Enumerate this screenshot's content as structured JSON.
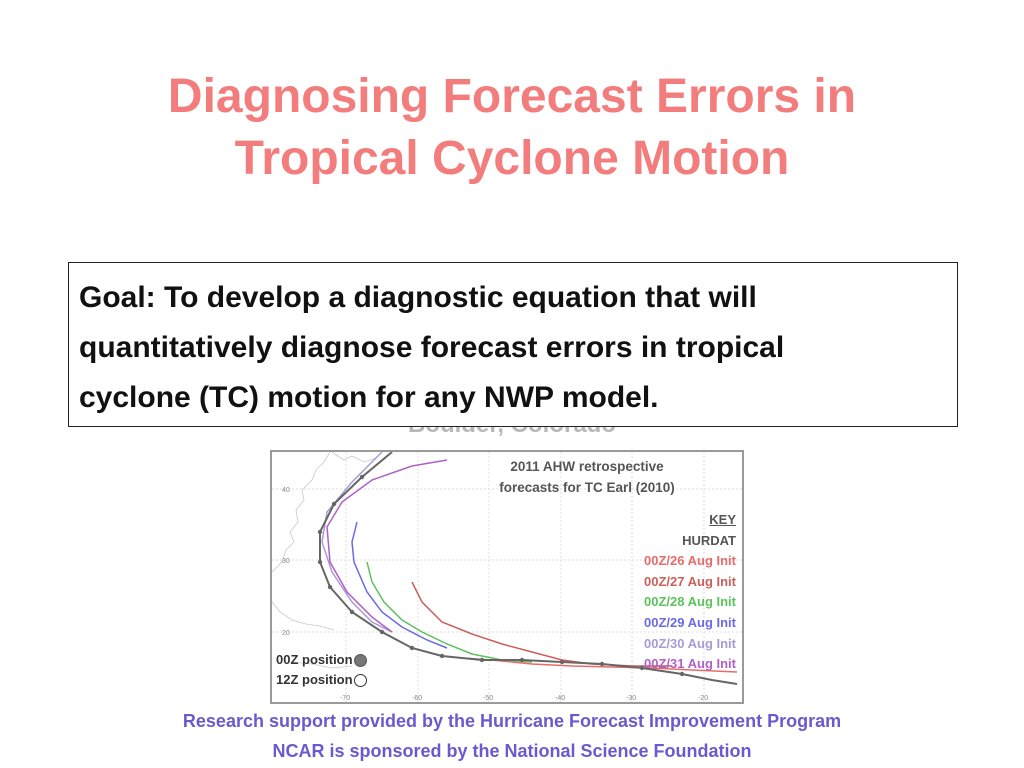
{
  "slide": {
    "title_line1": "Diagnosing Forecast Errors in",
    "title_line2": "Tropical Cyclone Motion",
    "ghost_text": "Boulder, Colorado",
    "goal_line1": "Goal: To develop a diagnostic equation that will",
    "goal_line2": "quantitatively diagnose forecast errors in tropical",
    "goal_line3": "cyclone (TC) motion for any NWP model.",
    "footer_line1": "Research support provided by the Hurricane Forecast Improvement Program",
    "footer_line2": "NCAR is sponsored by the National Science Foundation"
  },
  "figure": {
    "title_line1": "2011 AHW retrospective",
    "title_line2": "forecasts for TC Earl (2010)",
    "key_header": "KEY",
    "key_hurdat": "HURDAT",
    "key_items": [
      {
        "label": "00Z/26 Aug Init",
        "color": "#e86b6b"
      },
      {
        "label": "00Z/27 Aug Init",
        "color": "#c9605a"
      },
      {
        "label": "00Z/28 Aug Init",
        "color": "#5cc25c"
      },
      {
        "label": "00Z/29 Aug Init",
        "color": "#6a6ae8"
      },
      {
        "label": "00Z/30 Aug Init",
        "color": "#a99bd6"
      },
      {
        "label": "00Z/31 Aug Init",
        "color": "#b060c8"
      }
    ],
    "pos_00z": "00Z position",
    "pos_12z": "12Z position",
    "lat_labels": [
      "40",
      "30",
      "20"
    ],
    "lon_labels": [
      "-70",
      "-60",
      "-50",
      "-40",
      "-30",
      "-20"
    ]
  }
}
